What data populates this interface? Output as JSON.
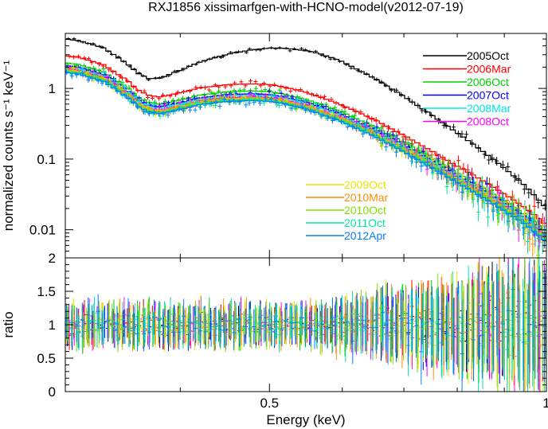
{
  "chart_data": {
    "type": "scatter",
    "title": "RXJ1856 xissimarfgen-with-HCNO-model(v2012-07-19)",
    "xlabel": "Energy (keV)",
    "x_scale": "log",
    "xlim": [
      0.3,
      1.0
    ],
    "x_ticks": [
      0.5,
      1
    ],
    "x_tick_labels": [
      "0.5",
      "1"
    ],
    "panels": [
      {
        "name": "spectrum",
        "ylabel": "normalized counts s⁻¹ keV⁻¹",
        "y_scale": "log",
        "ylim": [
          0.004,
          6
        ],
        "y_ticks": [
          0.01,
          0.1,
          1
        ],
        "y_tick_labels": [
          "0.01",
          "0.1",
          "1"
        ]
      },
      {
        "name": "residual",
        "ylabel": "ratio",
        "y_scale": "linear",
        "ylim": [
          0,
          2
        ],
        "y_ticks": [
          0,
          0.5,
          1,
          1.5,
          2
        ],
        "y_tick_labels": [
          "0",
          "0.5",
          "1",
          "1.5",
          "2"
        ]
      }
    ],
    "legend_placement": [
      "top-right",
      "center-right"
    ],
    "series": [
      {
        "name": "2005Oct",
        "color": "#000000",
        "scale": 2.5,
        "noise": 0.05,
        "ratio_noise": 0.2
      },
      {
        "name": "2006Mar",
        "color": "#ff0000",
        "scale": 1.45,
        "noise": 0.08,
        "ratio_noise": 0.22
      },
      {
        "name": "2006Oct",
        "color": "#00d000",
        "scale": 1.15,
        "noise": 0.09,
        "ratio_noise": 0.24
      },
      {
        "name": "2007Oct",
        "color": "#0000ff",
        "scale": 1.05,
        "noise": 0.09,
        "ratio_noise": 0.24
      },
      {
        "name": "2008Mar",
        "color": "#00e5e5",
        "scale": 1.0,
        "noise": 0.09,
        "ratio_noise": 0.24
      },
      {
        "name": "2008Oct",
        "color": "#ff00ff",
        "scale": 0.95,
        "noise": 0.1,
        "ratio_noise": 0.26
      },
      {
        "name": "2009Oct",
        "color": "#e5e500",
        "scale": 0.92,
        "noise": 0.1,
        "ratio_noise": 0.26
      },
      {
        "name": "2010Mar",
        "color": "#ff8c00",
        "scale": 0.9,
        "noise": 0.1,
        "ratio_noise": 0.26
      },
      {
        "name": "2010Oct",
        "color": "#80e000",
        "scale": 0.88,
        "noise": 0.1,
        "ratio_noise": 0.26
      },
      {
        "name": "2011Oct",
        "color": "#00e5a0",
        "scale": 0.86,
        "noise": 0.1,
        "ratio_noise": 0.26
      },
      {
        "name": "2012Apr",
        "color": "#0080ff",
        "scale": 0.84,
        "noise": 0.1,
        "ratio_noise": 0.26
      }
    ],
    "reference_model": {
      "energy": [
        0.3,
        0.31,
        0.33,
        0.35,
        0.36,
        0.37,
        0.38,
        0.4,
        0.42,
        0.45,
        0.48,
        0.5,
        0.52,
        0.55,
        0.6,
        0.65,
        0.7,
        0.75,
        0.8,
        0.85,
        0.9,
        0.95,
        1.0
      ],
      "counts": [
        2.0,
        1.9,
        1.5,
        0.9,
        0.65,
        0.55,
        0.52,
        0.6,
        0.7,
        0.78,
        0.8,
        0.78,
        0.72,
        0.6,
        0.4,
        0.25,
        0.15,
        0.09,
        0.055,
        0.035,
        0.022,
        0.014,
        0.008
      ]
    }
  }
}
